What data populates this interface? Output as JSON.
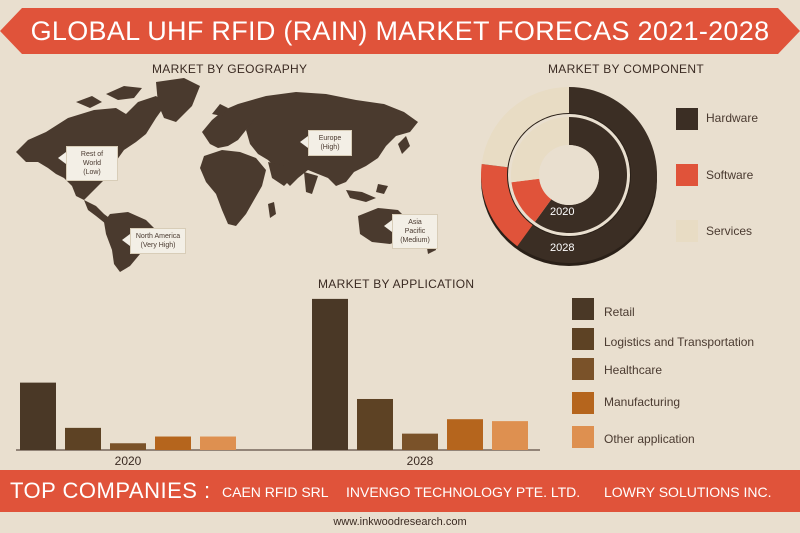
{
  "title": "GLOBAL UHF RFID (RAIN) MARKET FORECAS 2021-2028",
  "geography": {
    "label": "MARKET BY GEOGRAPHY",
    "callouts": [
      {
        "region": "Rest of World",
        "level": "(Low)"
      },
      {
        "region": "Europe",
        "level": "(High)"
      },
      {
        "region": "North America",
        "level": "(Very High)"
      },
      {
        "region": "Asia Pacific",
        "level": "(Medium)"
      }
    ]
  },
  "component": {
    "label": "MARKET BY COMPONENT",
    "legend": [
      "Hardware",
      "Software",
      "Services"
    ],
    "ring_labels": [
      "2020",
      "2028"
    ]
  },
  "application": {
    "label": "MARKET BY APPLICATION",
    "legend": [
      "Retail",
      "Logistics and Transportation",
      "Healthcare",
      "Manufacturing",
      "Other application"
    ]
  },
  "companies": {
    "label": "TOP COMPANIES :",
    "items": [
      "CAEN RFID SRL",
      "INVENGO TECHNOLOGY PTE. LTD.",
      "LOWRY SOLUTIONS INC."
    ]
  },
  "website": "www.inkwoodresearch.com",
  "colors": {
    "banner": "#e0533a",
    "retail": "#4a3826",
    "logistics": "#5d4224",
    "healthcare": "#7a5229",
    "manufacturing": "#b5651d",
    "other": "#de9050",
    "hardware": "#3b2e24",
    "software": "#e0533a",
    "services": "#e8dcc4",
    "map": "#4a3a2e"
  },
  "chart_data": [
    {
      "type": "bar",
      "title": "MARKET BY APPLICATION",
      "categories": [
        "2020",
        "2028"
      ],
      "series": [
        {
          "name": "Retail",
          "values": [
            70,
            157
          ]
        },
        {
          "name": "Logistics and Transportation",
          "values": [
            23,
            53
          ]
        },
        {
          "name": "Healthcare",
          "values": [
            7,
            17
          ]
        },
        {
          "name": "Manufacturing",
          "values": [
            14,
            32
          ]
        },
        {
          "name": "Other application",
          "values": [
            14,
            30
          ]
        }
      ],
      "ylim": [
        0,
        160
      ]
    },
    {
      "type": "pie",
      "title": "MARKET BY COMPONENT",
      "categories": [
        "Hardware",
        "Software",
        "Services"
      ],
      "series": [
        {
          "name": "2020",
          "values": [
            60,
            13,
            27
          ]
        },
        {
          "name": "2028",
          "values": [
            60,
            17,
            23
          ]
        }
      ]
    }
  ]
}
